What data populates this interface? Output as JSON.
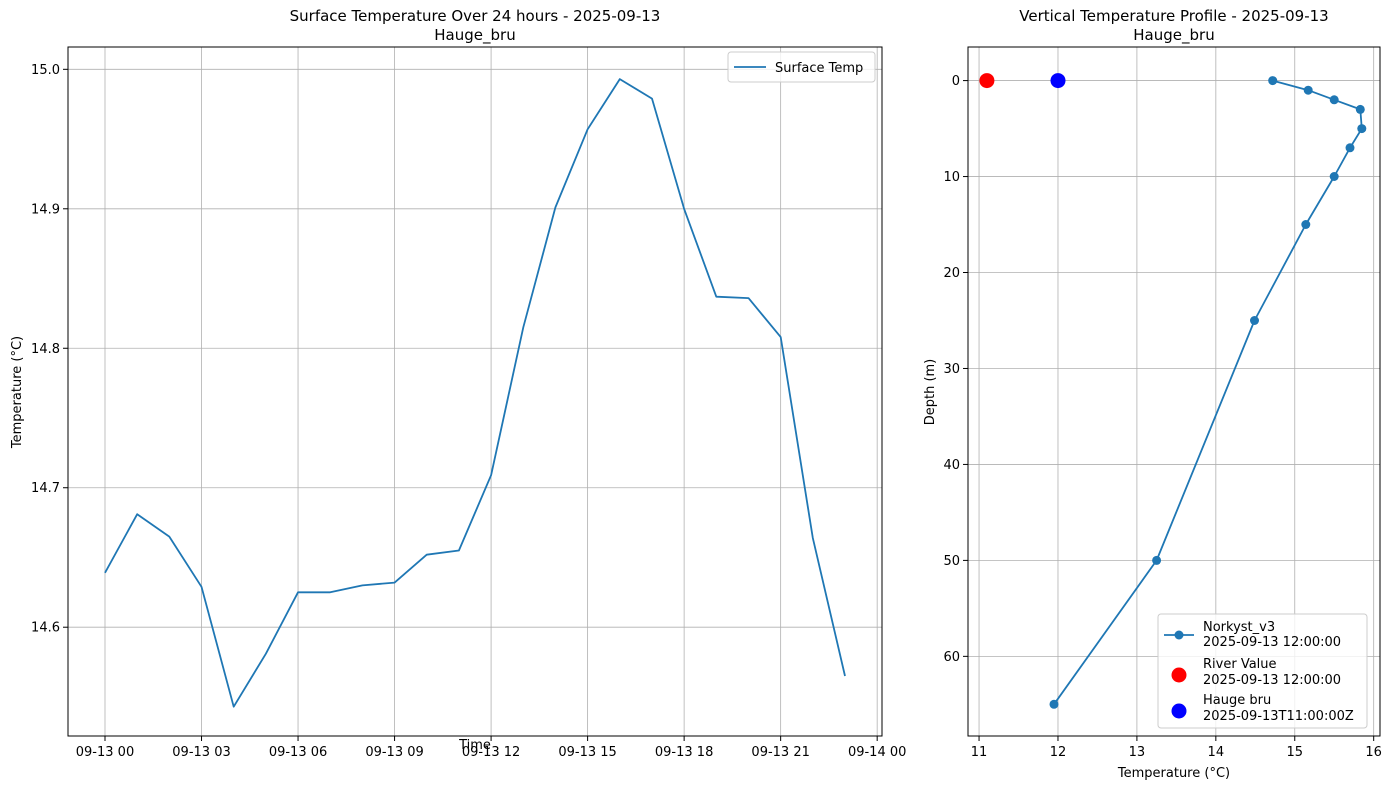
{
  "chart_data": [
    {
      "type": "line",
      "title": "Surface Temperature Over 24 hours - 2025-09-13",
      "subtitle": "Hauge_bru",
      "xlabel": "Time",
      "ylabel": "Temperature (°C)",
      "x_tick_labels": [
        "09-13 00",
        "09-13 03",
        "09-13 06",
        "09-13 09",
        "09-13 12",
        "09-13 15",
        "09-13 18",
        "09-13 21",
        "09-14 00"
      ],
      "x_tick_hours": [
        0,
        3,
        6,
        9,
        12,
        15,
        18,
        21,
        24
      ],
      "y_ticks": [
        14.6,
        14.7,
        14.8,
        14.9,
        15.0
      ],
      "y_tick_labels": [
        "14.6",
        "14.7",
        "14.8",
        "14.9",
        "15.0"
      ],
      "xlim_hours": [
        -1.15,
        24.15
      ],
      "ylim": [
        14.522,
        15.016
      ],
      "grid": true,
      "legend_position": "upper right",
      "series": [
        {
          "name": "Surface Temp",
          "color": "#1f77b4",
          "x_hours": [
            0,
            1,
            2,
            3,
            4,
            5,
            6,
            7,
            8,
            9,
            10,
            11,
            12,
            13,
            14,
            15,
            16,
            17,
            18,
            19,
            20,
            21,
            22,
            23
          ],
          "values": [
            14.639,
            14.681,
            14.665,
            14.629,
            14.543,
            14.581,
            14.625,
            14.625,
            14.63,
            14.632,
            14.652,
            14.655,
            14.709,
            14.815,
            14.901,
            14.957,
            14.993,
            14.979,
            14.9,
            14.837,
            14.836,
            14.808,
            14.664,
            14.565
          ]
        }
      ]
    },
    {
      "type": "line",
      "title": "Vertical Temperature Profile - 2025-09-13",
      "subtitle": "Hauge_bru",
      "xlabel": "Temperature (°C)",
      "ylabel": "Depth (m)",
      "x_ticks": [
        11,
        12,
        13,
        14,
        15,
        16
      ],
      "x_tick_labels": [
        "11",
        "12",
        "13",
        "14",
        "15",
        "16"
      ],
      "y_ticks": [
        0,
        10,
        20,
        30,
        40,
        50,
        60
      ],
      "y_tick_labels": [
        "0",
        "10",
        "20",
        "30",
        "40",
        "50",
        "60"
      ],
      "xlim": [
        10.86,
        16.08
      ],
      "ylim_inverted": [
        -3.5,
        68.3
      ],
      "grid": true,
      "legend_position": "lower right",
      "series": [
        {
          "name": "Norkyst_v3",
          "label_line2": "2025-09-13 12:00:00",
          "color": "#1f77b4",
          "marker": "circle",
          "temperature": [
            14.72,
            15.17,
            15.5,
            15.83,
            15.85,
            15.7,
            15.5,
            15.14,
            14.49,
            13.25,
            11.95
          ],
          "depth": [
            0,
            1,
            2,
            3,
            5,
            7,
            10,
            15,
            25,
            50,
            65
          ]
        },
        {
          "name": "River Value",
          "label_line2": "2025-09-13 12:00:00",
          "color": "#ff0000",
          "marker": "large-circle",
          "temperature": [
            11.1
          ],
          "depth": [
            0
          ]
        },
        {
          "name": "Hauge bru",
          "label_line2": "2025-09-13T11:00:00Z",
          "color": "#0000ff",
          "marker": "large-circle",
          "temperature": [
            12.0
          ],
          "depth": [
            0
          ]
        }
      ]
    }
  ]
}
